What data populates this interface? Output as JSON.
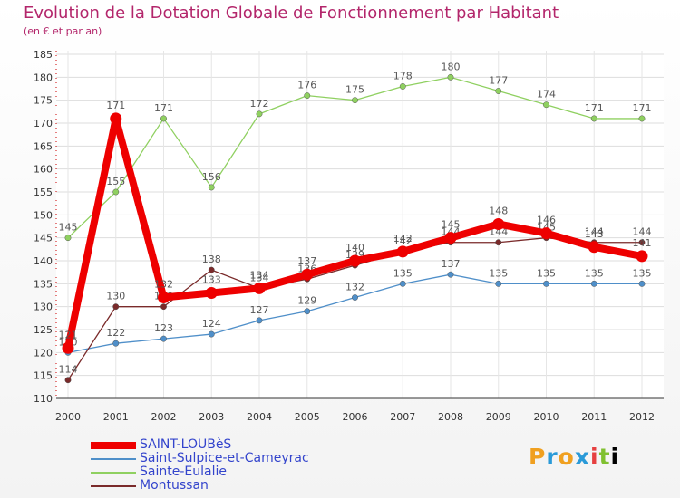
{
  "title": "Evolution de la Dotation Globale de Fonctionnement par Habitant",
  "subtitle": "(en € et par an)",
  "brand": [
    "P",
    "r",
    "o",
    "x",
    "i",
    "t",
    "i"
  ],
  "chart_data": {
    "type": "line",
    "x": [
      "2000",
      "2001",
      "2002",
      "2003",
      "2004",
      "2005",
      "2006",
      "2007",
      "2008",
      "2009",
      "2010",
      "2011",
      "2012"
    ],
    "ylim": [
      110,
      185
    ],
    "yticks": [
      110,
      115,
      120,
      125,
      130,
      135,
      140,
      145,
      150,
      155,
      160,
      165,
      170,
      175,
      180,
      185
    ],
    "series": [
      {
        "name": "SAINT-LOUBèS",
        "color": "#ee0000",
        "values": [
          121,
          171,
          132,
          133,
          134,
          137,
          140,
          142,
          145,
          148,
          146,
          143,
          141
        ],
        "labels": [
          "121",
          "171",
          "132",
          "133",
          "134",
          "137",
          "140",
          "142",
          "145",
          "148",
          "146",
          "143",
          "141"
        ]
      },
      {
        "name": "Saint-Sulpice-et-Cameyrac",
        "color": "#4f8fc9",
        "values": [
          120,
          122,
          123,
          124,
          127,
          129,
          132,
          135,
          137,
          135,
          135,
          135,
          135
        ],
        "labels": [
          "120",
          "122",
          "123",
          "124",
          "127",
          "129",
          "132",
          "135",
          "137",
          "135",
          "135",
          "135",
          "135"
        ]
      },
      {
        "name": "Sainte-Eulalie",
        "color": "#8fd060",
        "values": [
          145,
          155,
          171,
          156,
          172,
          176,
          175,
          178,
          180,
          177,
          174,
          171,
          171
        ],
        "labels": [
          "145",
          "155",
          "171",
          "156",
          "172",
          "176",
          "175",
          "178",
          "180",
          "177",
          "174",
          "171",
          "171"
        ]
      },
      {
        "name": "Montussan",
        "color": "#7a2a2a",
        "values": [
          114,
          130,
          130,
          138,
          134,
          136,
          139,
          142,
          144,
          144,
          145,
          144,
          144
        ],
        "labels": [
          "114",
          "130",
          "130",
          "138",
          "134",
          "136",
          "139",
          "142",
          "144",
          "144",
          "145",
          "144",
          "144"
        ]
      }
    ]
  }
}
